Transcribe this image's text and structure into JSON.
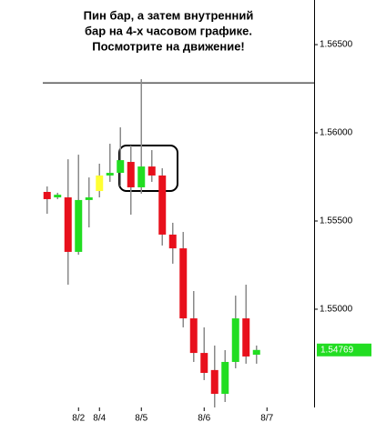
{
  "chart_data": {
    "type": "candlestick",
    "annotation": [
      "Пин бар, а затем внутренний",
      "бар на 4-х часовом графике.",
      "Посмотрите на движение!"
    ],
    "x": [
      0,
      1,
      2,
      3,
      4,
      5,
      6,
      7,
      8,
      9,
      10,
      11,
      12,
      13,
      14,
      15,
      16,
      17,
      18,
      19,
      20
    ],
    "open": [
      1.55665,
      1.55634,
      1.55634,
      1.55325,
      1.55619,
      1.5567,
      1.55758,
      1.55773,
      1.55835,
      1.55691,
      1.55809,
      1.55758,
      1.55423,
      1.55345,
      1.54948,
      1.54752,
      1.54655,
      1.5452,
      1.54701,
      1.54948,
      1.54742
    ],
    "high": [
      1.55696,
      1.5566,
      1.5585,
      1.55876,
      1.55747,
      1.55825,
      1.55938,
      1.56031,
      1.55928,
      1.56304,
      1.55902,
      1.55799,
      1.5549,
      1.55438,
      1.55103,
      1.54897,
      1.54794,
      1.54768,
      1.55077,
      1.55139,
      1.54794
    ],
    "low": [
      1.55541,
      1.55624,
      1.55139,
      1.55309,
      1.55464,
      1.55634,
      1.55722,
      1.55696,
      1.55536,
      1.55655,
      1.55722,
      1.55361,
      1.55258,
      1.54897,
      1.54701,
      1.54598,
      1.54443,
      1.54474,
      1.54665,
      1.54691,
      1.54691
    ],
    "close": [
      1.55624,
      1.55649,
      1.55325,
      1.55619,
      1.55634,
      1.55758,
      1.55773,
      1.55845,
      1.55691,
      1.55809,
      1.55758,
      1.55423,
      1.55345,
      1.54948,
      1.54752,
      1.54639,
      1.5452,
      1.54701,
      1.54948,
      1.54732,
      1.54769
    ],
    "colors": [
      "#e8101c",
      "#22dd22",
      "#e8101c",
      "#22dd22",
      "#22dd22",
      "#ffff33",
      "#22dd22",
      "#22dd22",
      "#e8101c",
      "#22dd22",
      "#e8101c",
      "#e8101c",
      "#e8101c",
      "#e8101c",
      "#e8101c",
      "#e8101c",
      "#e8101c",
      "#22dd22",
      "#22dd22",
      "#e8101c",
      "#22dd22"
    ],
    "wick_color": "#8a8a8a",
    "xlim": [
      -4.5,
      25.5
    ],
    "xticks": [
      {
        "value": 3,
        "label": "8/2"
      },
      {
        "value": 5,
        "label": "8/4"
      },
      {
        "value": 9,
        "label": "8/5"
      },
      {
        "value": 15,
        "label": "8/6"
      },
      {
        "value": 21,
        "label": "8/7"
      }
    ],
    "ylim": [
      1.54443,
      1.56753
    ],
    "yticks": [
      {
        "value": 1.565,
        "label": "1.56500"
      },
      {
        "value": 1.56,
        "label": "1.56000"
      },
      {
        "value": 1.555,
        "label": "1.55500"
      },
      {
        "value": 1.55,
        "label": "1.55000"
      }
    ],
    "hline": 1.56283,
    "last_price": 1.54769,
    "last_price_color": "#22dd22"
  }
}
